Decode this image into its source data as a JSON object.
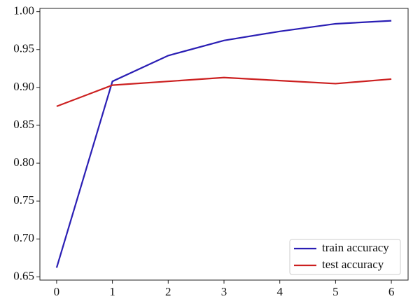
{
  "chart_data": {
    "type": "line",
    "x": [
      0,
      1,
      2,
      3,
      4,
      5,
      6
    ],
    "series": [
      {
        "name": "train accuracy",
        "color": "#2a1eb4",
        "values": [
          0.662,
          0.908,
          0.942,
          0.962,
          0.974,
          0.984,
          0.988
        ]
      },
      {
        "name": "test accuracy",
        "color": "#cc2020",
        "values": [
          0.875,
          0.903,
          0.908,
          0.913,
          0.909,
          0.905,
          0.911
        ]
      }
    ],
    "xlim": [
      -0.3,
      6.3
    ],
    "xticks": [
      0,
      1,
      2,
      3,
      4,
      5,
      6
    ],
    "ylim": [
      0.6457,
      1.0043
    ],
    "yticks": [
      0.65,
      {
        "value": 0.7,
        "label": "0.70"
      },
      0.75,
      {
        "value": 0.8,
        "label": "0.80"
      },
      0.85,
      {
        "value": 0.9,
        "label": "0.90"
      },
      0.95,
      {
        "value": 1.0,
        "label": "1.00"
      }
    ],
    "legend": "lower right"
  }
}
